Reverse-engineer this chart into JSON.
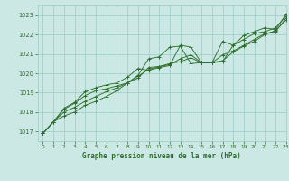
{
  "title": "Graphe pression niveau de la mer (hPa)",
  "bg_color": "#cce8e4",
  "grid_color": "#99ccc7",
  "line_color": "#2d6e2d",
  "xlim": [
    -0.5,
    23
  ],
  "ylim": [
    1016.5,
    1023.5
  ],
  "xticks": [
    0,
    1,
    2,
    3,
    4,
    5,
    6,
    7,
    8,
    9,
    10,
    11,
    12,
    13,
    14,
    15,
    16,
    17,
    18,
    19,
    20,
    21,
    22,
    23
  ],
  "yticks": [
    1017,
    1018,
    1019,
    1020,
    1021,
    1022,
    1023
  ],
  "series": [
    [
      1016.9,
      1017.5,
      1017.8,
      1018.0,
      1018.35,
      1018.55,
      1018.8,
      1019.1,
      1019.5,
      1019.85,
      1020.2,
      1020.35,
      1020.45,
      1020.75,
      1020.95,
      1020.55,
      1020.55,
      1020.65,
      1021.1,
      1021.4,
      1021.65,
      1022.0,
      1022.2,
      1022.75
    ],
    [
      1016.9,
      1017.5,
      1018.0,
      1018.25,
      1018.55,
      1018.8,
      1019.05,
      1019.25,
      1019.5,
      1019.75,
      1020.3,
      1020.35,
      1020.5,
      1020.6,
      1020.8,
      1020.55,
      1020.55,
      1020.95,
      1021.15,
      1021.45,
      1021.75,
      1022.05,
      1022.15,
      1022.85
    ],
    [
      1016.9,
      1017.5,
      1018.15,
      1018.45,
      1018.85,
      1019.1,
      1019.2,
      1019.35,
      1019.5,
      1019.9,
      1020.75,
      1020.85,
      1021.35,
      1021.4,
      1020.5,
      1020.55,
      1020.55,
      1020.6,
      1021.45,
      1021.75,
      1022.05,
      1022.15,
      1022.35,
      1022.95
    ],
    [
      1016.9,
      1017.5,
      1018.2,
      1018.5,
      1019.05,
      1019.25,
      1019.4,
      1019.5,
      1019.8,
      1020.25,
      1020.15,
      1020.3,
      1020.4,
      1021.45,
      1021.35,
      1020.55,
      1020.55,
      1021.65,
      1021.45,
      1021.95,
      1022.15,
      1022.35,
      1022.25,
      1023.05
    ]
  ]
}
